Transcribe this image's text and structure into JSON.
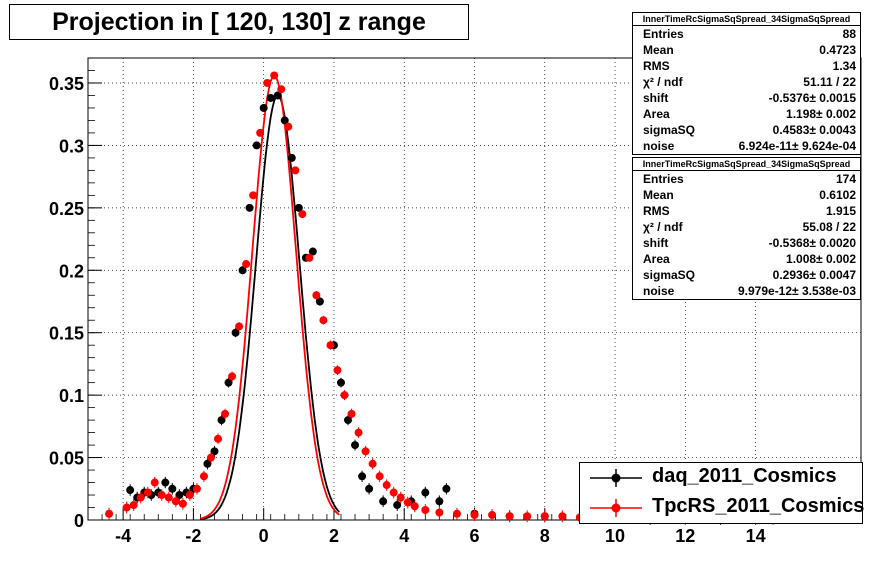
{
  "title": "Projection in [ 120, 130] z range",
  "stats": [
    {
      "name": "InnerTimeRcSigmaSqSpread_34SigmaSqSpread",
      "rows": [
        {
          "label": "Entries",
          "value": "88"
        },
        {
          "label": "Mean",
          "value": "0.4723"
        },
        {
          "label": "RMS",
          "value": "1.34"
        },
        {
          "label": "χ² / ndf",
          "value": "51.11 / 22"
        },
        {
          "label": "shift",
          "value": "-0.5376± 0.0015"
        },
        {
          "label": "Area",
          "value": "1.198± 0.002"
        },
        {
          "label": "sigmaSQ",
          "value": "0.4583± 0.0043"
        },
        {
          "label": "noise",
          "value": "6.924e-11± 9.624e-04"
        }
      ]
    },
    {
      "name": "InnerTimeRcSigmaSqSpread_34SigmaSqSpread",
      "rows": [
        {
          "label": "Entries",
          "value": "174"
        },
        {
          "label": "Mean",
          "value": "0.6102"
        },
        {
          "label": "RMS",
          "value": "1.915"
        },
        {
          "label": "χ² / ndf",
          "value": "55.08 / 22"
        },
        {
          "label": "shift",
          "value": "-0.5368± 0.0020"
        },
        {
          "label": "Area",
          "value": "1.008± 0.002"
        },
        {
          "label": "sigmaSQ",
          "value": "0.2936± 0.0047"
        },
        {
          "label": "noise",
          "value": "9.979e-12± 3.538e-03"
        }
      ]
    }
  ],
  "legend": [
    {
      "label": "daq_2011_Cosmics",
      "color": "#000000"
    },
    {
      "label": "TpcRS_2011_Cosmics",
      "color": "#ff0000"
    }
  ],
  "chart_data": {
    "type": "scatter",
    "title": "Projection in [ 120, 130] z range",
    "xlim": [
      -5,
      17
    ],
    "ylim": [
      0,
      0.37
    ],
    "x_ticks": [
      -4,
      -2,
      0,
      2,
      4,
      6,
      8,
      10,
      12,
      14
    ],
    "y_ticks": [
      0,
      0.05,
      0.1,
      0.15,
      0.2,
      0.25,
      0.3,
      0.35
    ],
    "y_tick_labels": [
      "0",
      "0.05",
      "0.1",
      "0.15",
      "0.2",
      "0.25",
      "0.3",
      "0.35"
    ],
    "grid": true,
    "series": [
      {
        "name": "daq_2011_Cosmics",
        "color": "#000000",
        "points": [
          [
            -3.8,
            0.024
          ],
          [
            -3.6,
            0.018
          ],
          [
            -3.4,
            0.022
          ],
          [
            -3.2,
            0.02
          ],
          [
            -3.0,
            0.022
          ],
          [
            -2.8,
            0.03
          ],
          [
            -2.6,
            0.025
          ],
          [
            -2.4,
            0.02
          ],
          [
            -2.2,
            0.022
          ],
          [
            -2.0,
            0.025
          ],
          [
            -1.6,
            0.045
          ],
          [
            -1.4,
            0.055
          ],
          [
            -1.2,
            0.08
          ],
          [
            -1.0,
            0.11
          ],
          [
            -0.8,
            0.15
          ],
          [
            -0.6,
            0.2
          ],
          [
            -0.4,
            0.25
          ],
          [
            -0.2,
            0.3
          ],
          [
            0.0,
            0.33
          ],
          [
            0.2,
            0.338
          ],
          [
            0.4,
            0.34
          ],
          [
            0.6,
            0.32
          ],
          [
            0.8,
            0.29
          ],
          [
            1.0,
            0.25
          ],
          [
            1.2,
            0.21
          ],
          [
            1.4,
            0.215
          ],
          [
            1.6,
            0.175
          ],
          [
            2.0,
            0.14
          ],
          [
            2.2,
            0.11
          ],
          [
            2.4,
            0.08
          ],
          [
            2.6,
            0.06
          ],
          [
            2.8,
            0.035
          ],
          [
            3.0,
            0.025
          ],
          [
            3.4,
            0.015
          ],
          [
            3.8,
            0.012
          ],
          [
            4.2,
            0.015
          ],
          [
            4.6,
            0.022
          ],
          [
            5.0,
            0.015
          ],
          [
            5.2,
            0.025
          ],
          [
            6.0,
            0.005
          ],
          [
            7.0,
            0.003
          ],
          [
            8.0,
            0.003
          ],
          [
            9.0,
            0.002
          ],
          [
            10.0,
            0.002
          ],
          [
            11.0,
            0.001
          ],
          [
            12.0,
            0.001
          ],
          [
            13.0,
            0.001
          ],
          [
            14.0,
            0.001
          ]
        ]
      },
      {
        "name": "TpcRS_2011_Cosmics",
        "color": "#ff0000",
        "points": [
          [
            -4.4,
            0.005
          ],
          [
            -3.9,
            0.01
          ],
          [
            -3.7,
            0.012
          ],
          [
            -3.5,
            0.018
          ],
          [
            -3.3,
            0.022
          ],
          [
            -3.1,
            0.03
          ],
          [
            -2.9,
            0.02
          ],
          [
            -2.7,
            0.018
          ],
          [
            -2.5,
            0.015
          ],
          [
            -2.3,
            0.013
          ],
          [
            -2.1,
            0.02
          ],
          [
            -1.9,
            0.025
          ],
          [
            -1.7,
            0.035
          ],
          [
            -1.5,
            0.05
          ],
          [
            -1.3,
            0.065
          ],
          [
            -1.1,
            0.085
          ],
          [
            -0.9,
            0.115
          ],
          [
            -0.7,
            0.155
          ],
          [
            -0.5,
            0.205
          ],
          [
            -0.3,
            0.26
          ],
          [
            -0.1,
            0.31
          ],
          [
            0.1,
            0.35
          ],
          [
            0.3,
            0.356
          ],
          [
            0.5,
            0.345
          ],
          [
            0.7,
            0.315
          ],
          [
            0.9,
            0.28
          ],
          [
            1.1,
            0.245
          ],
          [
            1.3,
            0.21
          ],
          [
            1.5,
            0.18
          ],
          [
            1.7,
            0.16
          ],
          [
            1.9,
            0.14
          ],
          [
            2.1,
            0.12
          ],
          [
            2.3,
            0.1
          ],
          [
            2.5,
            0.085
          ],
          [
            2.7,
            0.07
          ],
          [
            2.9,
            0.055
          ],
          [
            3.1,
            0.045
          ],
          [
            3.3,
            0.035
          ],
          [
            3.5,
            0.028
          ],
          [
            3.7,
            0.022
          ],
          [
            3.9,
            0.018
          ],
          [
            4.1,
            0.014
          ],
          [
            4.3,
            0.011
          ],
          [
            4.6,
            0.008
          ],
          [
            5.0,
            0.006
          ],
          [
            5.5,
            0.005
          ],
          [
            6.0,
            0.004
          ],
          [
            6.5,
            0.004
          ],
          [
            7.0,
            0.003
          ],
          [
            7.5,
            0.003
          ],
          [
            8.0,
            0.003
          ],
          [
            8.5,
            0.003
          ],
          [
            9.0,
            0.002
          ],
          [
            9.5,
            0.003
          ],
          [
            10.0,
            0.002
          ],
          [
            10.5,
            0.002
          ],
          [
            11.0,
            0.002
          ],
          [
            11.5,
            0.002
          ],
          [
            12.0,
            0.002
          ],
          [
            12.5,
            0.002
          ],
          [
            13.0,
            0.002
          ],
          [
            13.5,
            0.002
          ],
          [
            14.0,
            0.001
          ],
          [
            14.5,
            0.001
          ]
        ]
      }
    ]
  }
}
